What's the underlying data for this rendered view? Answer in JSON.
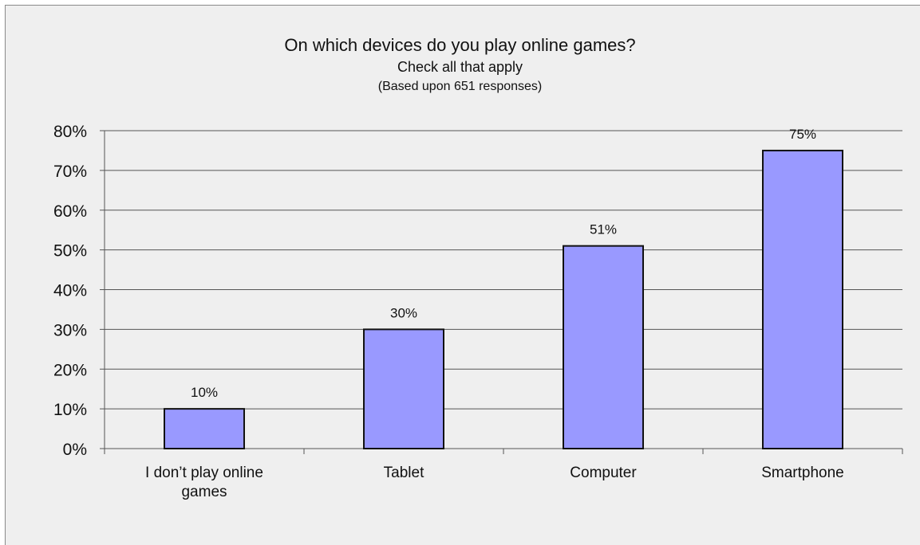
{
  "chart_data": {
    "type": "bar",
    "title": "On which devices do you play online games?",
    "subtitle": "Check all that apply",
    "note": "(Based upon 651 responses)",
    "categories": [
      [
        "I don’t play online",
        "games"
      ],
      [
        "Tablet"
      ],
      [
        "Computer"
      ],
      [
        "Smartphone"
      ]
    ],
    "values": [
      10,
      30,
      51,
      75
    ],
    "value_labels": [
      "10%",
      "30%",
      "51%",
      "75%"
    ],
    "ylim": [
      0,
      80
    ],
    "yticks": [
      0,
      10,
      20,
      30,
      40,
      50,
      60,
      70,
      80
    ],
    "ytick_labels": [
      "0%",
      "10%",
      "20%",
      "30%",
      "40%",
      "50%",
      "60%",
      "70%",
      "80%"
    ],
    "grid": true,
    "legend": "none",
    "bar_color": "#9999ff",
    "bar_edge_color": "#111111",
    "background_color": "#efefef"
  }
}
